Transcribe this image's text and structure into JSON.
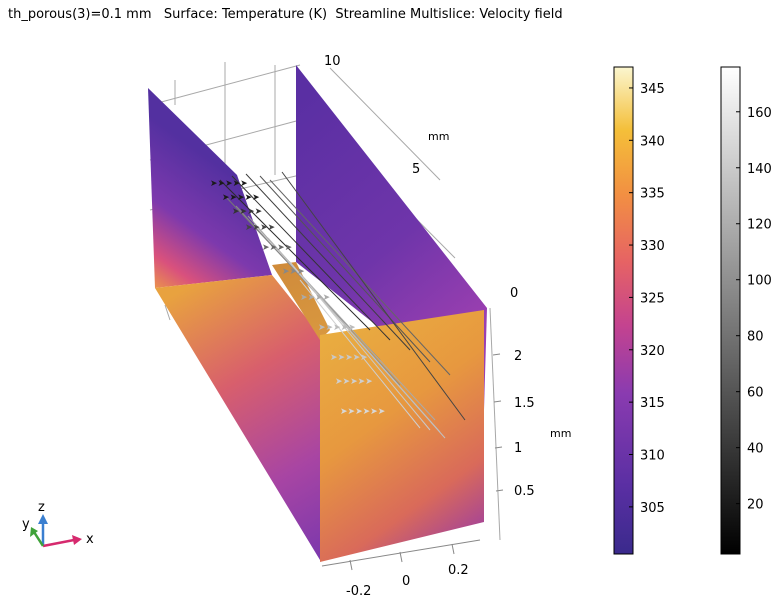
{
  "title": "th_porous(3)=0.1 mm   Surface: Temperature (K)  Streamline Multislice: Velocity field",
  "axes": {
    "x_ticks": [
      "-0.2",
      "0",
      "0.2"
    ],
    "y_ticks": [
      "0",
      "5",
      "10"
    ],
    "y_unit": "mm",
    "z_ticks": [
      "0.5",
      "1",
      "1.5",
      "2"
    ],
    "z_unit": "mm"
  },
  "triad": {
    "x": "x",
    "y": "y",
    "z": "z"
  },
  "colors": {
    "triad_x": "#d62a6e",
    "triad_y": "#3fa23a",
    "triad_z": "#3a7fd0"
  },
  "chart_data": {
    "type": "3d-surface-streamline",
    "surface_expression": "Temperature (K)",
    "streamline_expression": "Velocity field",
    "temperature_colorbar": {
      "colormap": "plasma",
      "range": [
        300.5,
        347
      ],
      "ticks": [
        305,
        310,
        315,
        320,
        325,
        330,
        335,
        340,
        345
      ],
      "tick_labels": [
        "305",
        "310",
        "315",
        "320",
        "325",
        "330",
        "335",
        "340",
        "345"
      ]
    },
    "velocity_colorbar": {
      "colormap": "grayscale",
      "range": [
        2,
        176
      ],
      "ticks": [
        20,
        40,
        60,
        80,
        100,
        120,
        140,
        160
      ],
      "tick_labels": [
        "20",
        "40",
        "60",
        "80",
        "100",
        "120",
        "140",
        "160"
      ]
    }
  }
}
